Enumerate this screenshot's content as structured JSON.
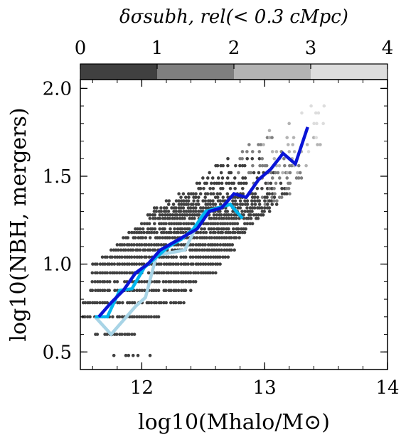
{
  "chart_data": {
    "type": "scatter",
    "title": "",
    "xlabel": "log10(Mhalo/M⊙)",
    "ylabel": "log10(NBH, mergers)",
    "xlim": [
      11.5,
      14.0
    ],
    "ylim": [
      0.4,
      2.05
    ],
    "x_ticks": [
      12,
      13,
      14
    ],
    "x_tick_labels": [
      "12",
      "13",
      "14"
    ],
    "y_ticks": [
      0.5,
      1.0,
      1.5,
      2.0
    ],
    "y_tick_labels": [
      "0.5",
      "1.0",
      "1.5",
      "2.0"
    ],
    "grid": false,
    "colorbar": {
      "label": "δσsubh, rel(< 0.3 cMpc)",
      "range": [
        0,
        4
      ],
      "ticks": [
        0,
        1,
        2,
        3,
        4
      ],
      "tick_labels": [
        "0",
        "1",
        "2",
        "3",
        "4"
      ],
      "bins": [
        {
          "range": [
            0,
            1
          ],
          "color": "#404040"
        },
        {
          "range": [
            1,
            2
          ],
          "color": "#7f7f7f"
        },
        {
          "range": [
            2,
            3
          ],
          "color": "#b3b3b3"
        },
        {
          "range": [
            3,
            4
          ],
          "color": "#dddddd"
        }
      ]
    },
    "scatter_bands": [
      {
        "y": 0.48,
        "x_min": 11.65,
        "x_max": 12.1,
        "density": 0.3
      },
      {
        "y": 0.6,
        "x_min": 11.62,
        "x_max": 11.95,
        "density": 0.8
      },
      {
        "y": 0.7,
        "x_min": 11.52,
        "x_max": 12.15,
        "density": 0.9
      },
      {
        "y": 0.78,
        "x_min": 11.52,
        "x_max": 12.35,
        "density": 0.9
      },
      {
        "y": 0.85,
        "x_min": 11.58,
        "x_max": 12.4,
        "density": 0.9
      },
      {
        "y": 0.9,
        "x_min": 11.6,
        "x_max": 12.45,
        "density": 0.9
      },
      {
        "y": 0.95,
        "x_min": 11.6,
        "x_max": 12.6,
        "density": 0.95
      },
      {
        "y": 1.0,
        "x_min": 11.6,
        "x_max": 12.65,
        "density": 0.95
      },
      {
        "y": 1.04,
        "x_min": 11.68,
        "x_max": 12.7,
        "density": 0.95
      },
      {
        "y": 1.08,
        "x_min": 11.75,
        "x_max": 12.75,
        "density": 0.95
      },
      {
        "y": 1.11,
        "x_min": 11.8,
        "x_max": 12.75,
        "density": 0.95
      },
      {
        "y": 1.15,
        "x_min": 11.85,
        "x_max": 12.8,
        "density": 0.95
      },
      {
        "y": 1.18,
        "x_min": 11.9,
        "x_max": 12.85,
        "density": 0.95
      },
      {
        "y": 1.2,
        "x_min": 11.95,
        "x_max": 12.85,
        "density": 0.9
      },
      {
        "y": 1.23,
        "x_min": 12.0,
        "x_max": 12.9,
        "density": 0.9
      },
      {
        "y": 1.26,
        "x_min": 12.05,
        "x_max": 12.95,
        "density": 0.9
      },
      {
        "y": 1.28,
        "x_min": 12.05,
        "x_max": 13.0,
        "density": 0.9
      },
      {
        "y": 1.3,
        "x_min": 12.1,
        "x_max": 13.05,
        "density": 0.85
      },
      {
        "y": 1.32,
        "x_min": 12.1,
        "x_max": 13.05,
        "density": 0.8
      },
      {
        "y": 1.34,
        "x_min": 12.2,
        "x_max": 13.1,
        "density": 0.8
      },
      {
        "y": 1.36,
        "x_min": 12.2,
        "x_max": 13.1,
        "density": 0.75
      },
      {
        "y": 1.38,
        "x_min": 12.3,
        "x_max": 13.15,
        "density": 0.7
      },
      {
        "y": 1.4,
        "x_min": 12.3,
        "x_max": 13.2,
        "density": 0.65
      },
      {
        "y": 1.43,
        "x_min": 12.4,
        "x_max": 13.2,
        "density": 0.6
      },
      {
        "y": 1.46,
        "x_min": 12.45,
        "x_max": 13.25,
        "density": 0.55
      },
      {
        "y": 1.49,
        "x_min": 12.5,
        "x_max": 13.3,
        "density": 0.5
      },
      {
        "y": 1.52,
        "x_min": 12.55,
        "x_max": 13.3,
        "density": 0.45
      },
      {
        "y": 1.56,
        "x_min": 12.6,
        "x_max": 13.35,
        "density": 0.4
      },
      {
        "y": 1.6,
        "x_min": 12.7,
        "x_max": 13.4,
        "density": 0.35
      },
      {
        "y": 1.64,
        "x_min": 12.8,
        "x_max": 13.4,
        "density": 0.3
      },
      {
        "y": 1.68,
        "x_min": 12.85,
        "x_max": 13.45,
        "density": 0.25
      },
      {
        "y": 1.72,
        "x_min": 12.8,
        "x_max": 13.45,
        "density": 0.2
      },
      {
        "y": 1.76,
        "x_min": 13.0,
        "x_max": 13.5,
        "density": 0.15
      },
      {
        "y": 1.8,
        "x_min": 13.2,
        "x_max": 13.55,
        "density": 0.15
      },
      {
        "y": 1.86,
        "x_min": 13.3,
        "x_max": 13.5,
        "density": 0.15
      },
      {
        "y": 1.9,
        "x_min": 13.38,
        "x_max": 13.5,
        "density": 0.15
      }
    ],
    "series": [
      {
        "color": "#0a14d6",
        "x": [
          11.65,
          11.75,
          11.85,
          11.95,
          12.05,
          12.15,
          12.25,
          12.35,
          12.45,
          12.55,
          12.65,
          12.75,
          12.85,
          12.95,
          13.05,
          13.15,
          13.25,
          13.35
        ],
        "y": [
          0.7,
          0.78,
          0.85,
          0.95,
          1.0,
          1.08,
          1.12,
          1.16,
          1.2,
          1.3,
          1.32,
          1.4,
          1.38,
          1.48,
          1.54,
          1.63,
          1.57,
          1.78
        ]
      },
      {
        "color": "#00b6ee",
        "x": [
          11.62,
          11.72,
          11.82,
          11.92,
          12.02,
          12.12,
          12.22,
          12.32,
          12.42,
          12.52,
          12.62,
          12.72,
          12.82
        ],
        "y": [
          0.7,
          0.7,
          0.85,
          0.86,
          0.98,
          1.04,
          1.1,
          1.14,
          1.2,
          1.3,
          1.32,
          1.34,
          1.26
        ]
      },
      {
        "color": "#a8d4e6",
        "x": [
          11.62,
          11.75,
          11.95,
          12.03,
          12.12,
          12.35,
          12.5
        ],
        "y": [
          0.7,
          0.6,
          0.76,
          0.81,
          1.05,
          1.08,
          1.29
        ]
      }
    ]
  }
}
